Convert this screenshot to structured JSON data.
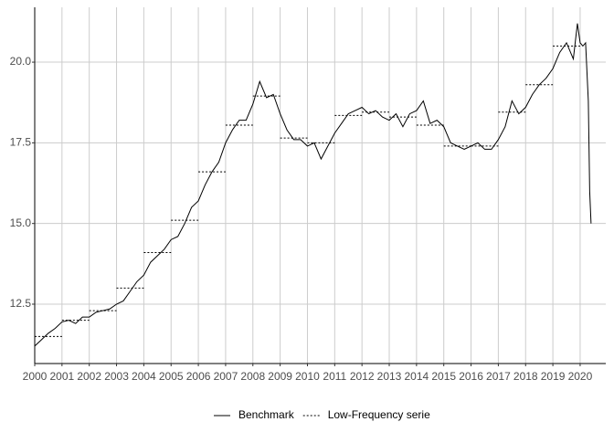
{
  "chart_data": {
    "type": "line",
    "series": [
      {
        "name": "Benchmark",
        "color": "#000000",
        "dash": "solid",
        "x": [
          2000.0,
          2000.25,
          2000.5,
          2000.75,
          2001.0,
          2001.25,
          2001.5,
          2001.75,
          2002.0,
          2002.25,
          2002.5,
          2002.75,
          2003.0,
          2003.25,
          2003.5,
          2003.75,
          2004.0,
          2004.25,
          2004.5,
          2004.75,
          2005.0,
          2005.25,
          2005.5,
          2005.75,
          2006.0,
          2006.25,
          2006.5,
          2006.75,
          2007.0,
          2007.25,
          2007.5,
          2007.75,
          2008.0,
          2008.25,
          2008.5,
          2008.75,
          2009.0,
          2009.25,
          2009.5,
          2009.75,
          2010.0,
          2010.25,
          2010.5,
          2010.75,
          2011.0,
          2011.25,
          2011.5,
          2011.75,
          2012.0,
          2012.25,
          2012.5,
          2012.75,
          2013.0,
          2013.25,
          2013.5,
          2013.75,
          2014.0,
          2014.25,
          2014.5,
          2014.75,
          2015.0,
          2015.25,
          2015.5,
          2015.75,
          2016.0,
          2016.25,
          2016.5,
          2016.75,
          2017.0,
          2017.25,
          2017.5,
          2017.75,
          2018.0,
          2018.25,
          2018.5,
          2018.75,
          2019.0,
          2019.25,
          2019.5,
          2019.75,
          2019.9,
          2020.0,
          2020.1,
          2020.2,
          2020.3,
          2020.35,
          2020.4
        ],
        "values": [
          11.2,
          11.4,
          11.6,
          11.75,
          11.95,
          12.0,
          11.9,
          12.1,
          12.1,
          12.25,
          12.3,
          12.35,
          12.5,
          12.6,
          12.9,
          13.2,
          13.4,
          13.8,
          14.0,
          14.2,
          14.5,
          14.6,
          15.0,
          15.5,
          15.7,
          16.2,
          16.6,
          16.9,
          17.5,
          17.9,
          18.2,
          18.2,
          18.7,
          19.4,
          18.9,
          19.0,
          18.4,
          17.9,
          17.6,
          17.6,
          17.4,
          17.5,
          17.0,
          17.4,
          17.8,
          18.1,
          18.4,
          18.5,
          18.6,
          18.4,
          18.5,
          18.3,
          18.2,
          18.4,
          18.0,
          18.4,
          18.5,
          18.8,
          18.1,
          18.2,
          18.0,
          17.5,
          17.4,
          17.3,
          17.4,
          17.5,
          17.3,
          17.3,
          17.6,
          18.0,
          18.8,
          18.4,
          18.6,
          19.0,
          19.3,
          19.5,
          19.8,
          20.3,
          20.6,
          20.1,
          21.2,
          20.6,
          20.5,
          20.6,
          18.8,
          16.0,
          15.0
        ]
      },
      {
        "name": "Low-Frequency serie",
        "color": "#000000",
        "dash": "dotted",
        "step": true,
        "x": [
          2000,
          2001,
          2002,
          2003,
          2004,
          2005,
          2006,
          2007,
          2008,
          2009,
          2010,
          2011,
          2012,
          2013,
          2014,
          2015,
          2016,
          2017,
          2018,
          2019
        ],
        "values": [
          11.5,
          12.0,
          12.3,
          13.0,
          14.1,
          15.1,
          16.6,
          18.05,
          18.95,
          17.65,
          17.5,
          18.35,
          18.45,
          18.3,
          18.05,
          17.4,
          17.4,
          18.45,
          19.3,
          20.5
        ]
      }
    ],
    "xlim": [
      2000,
      2020.94
    ],
    "xticks": [
      2000,
      2001,
      2002,
      2003,
      2004,
      2005,
      2006,
      2007,
      2008,
      2009,
      2010,
      2011,
      2012,
      2013,
      2014,
      2015,
      2016,
      2017,
      2018,
      2019,
      2020
    ],
    "ylim": [
      10.66,
      21.7
    ],
    "yticks": [
      {
        "value": 12.5,
        "label": "12.5"
      },
      {
        "value": 15,
        "label": "15.0"
      },
      17.5,
      {
        "value": 20,
        "label": "20.0"
      }
    ],
    "grid": true,
    "legend": "bottom"
  }
}
